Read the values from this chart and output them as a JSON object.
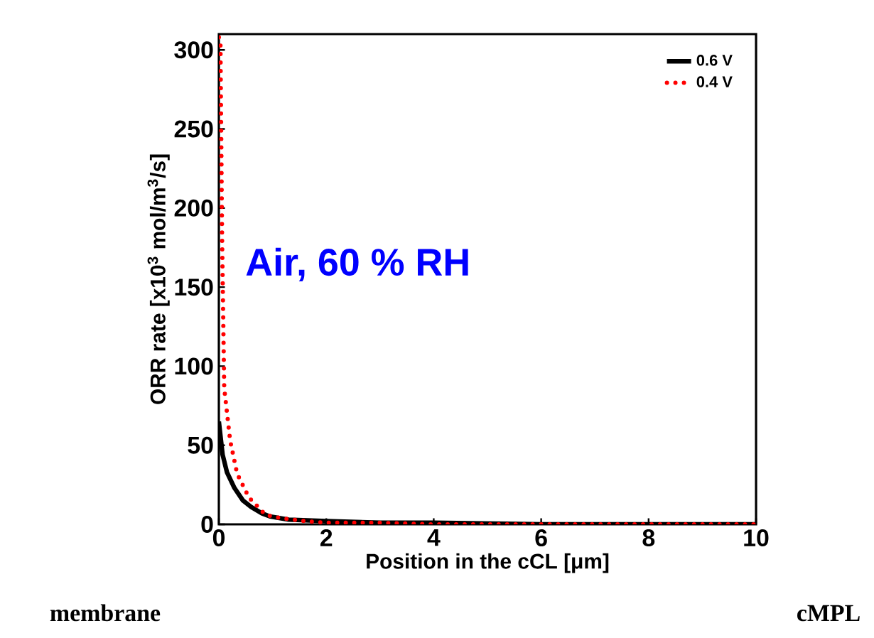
{
  "chart_data": {
    "type": "line",
    "xlabel": "Position in the cCL [μm]",
    "ylabel": "ORR rate [x10$^{3}$ mol/m$^{3}$/s]",
    "xlim": [
      0,
      10
    ],
    "ylim": [
      0,
      310
    ],
    "xticks": [
      0,
      2,
      4,
      6,
      8,
      10
    ],
    "yticks": [
      0,
      50,
      100,
      150,
      200,
      250,
      300
    ],
    "grid": false,
    "legend": "top right",
    "marker": "none",
    "series": [
      {
        "name": "0.6 V",
        "color": "#000000",
        "line_style": "solid",
        "x": [
          0,
          0.07,
          0.15,
          0.29,
          0.45,
          0.6,
          0.8,
          0.95,
          1.3,
          2,
          3,
          4,
          6,
          8,
          10
        ],
        "values": [
          65,
          44,
          33,
          23,
          15,
          11,
          7,
          5,
          3,
          2,
          1,
          1,
          0,
          0,
          0
        ]
      },
      {
        "name": "0.4 V",
        "color": "#ff0000",
        "line_style": "dotted",
        "x": [
          0,
          0.03,
          0.06,
          0.1,
          0.21,
          0.34,
          0.56,
          0.87,
          1.14,
          1.6,
          2,
          3,
          4,
          6,
          8,
          10
        ],
        "values": [
          308,
          304,
          181,
          86,
          53,
          32,
          17,
          6,
          4,
          2,
          1,
          1,
          0,
          0,
          0,
          0
        ]
      }
    ],
    "annotations": [
      "Air, 60 % RH",
      "membrane",
      "cMPL"
    ]
  }
}
